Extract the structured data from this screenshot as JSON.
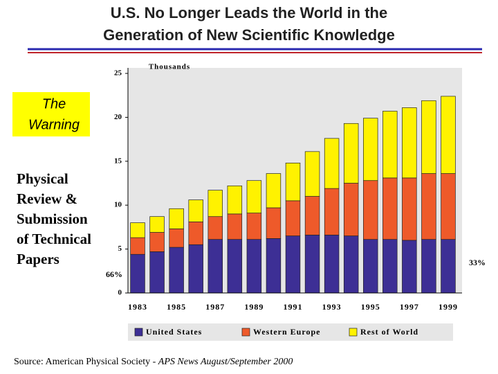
{
  "slide": {
    "title": [
      "U.S. No Longer Leads the World in the",
      "Generation of New Scientific Knowledge"
    ],
    "warning": [
      "The",
      "Warning"
    ],
    "side_text": [
      "Physical",
      "Review &",
      "Submission",
      "of Technical",
      "Papers"
    ],
    "left_note": "66%",
    "right_note": "33%",
    "source": {
      "prefix": "Source:",
      "text": "American Physical Society - ",
      "italic": "APS News August/September 2000"
    }
  },
  "chart_data": {
    "type": "stacked_bar",
    "y_unit": "Thousands",
    "categories": [
      "1983",
      null,
      "1985",
      null,
      "1987",
      null,
      "1989",
      null,
      "1991",
      null,
      "1993",
      null,
      "1995",
      null,
      "1997",
      null,
      "1999"
    ],
    "series": [
      {
        "name": "United States",
        "color": "#3d2f95",
        "values": [
          4.4,
          4.7,
          5.2,
          5.5,
          6.1,
          6.1,
          6.1,
          6.2,
          6.5,
          6.6,
          6.6,
          6.5,
          6.1,
          6.1,
          6.0,
          6.1,
          6.1
        ]
      },
      {
        "name": "Western Europe",
        "color": "#ee5a2a",
        "values": [
          1.9,
          2.2,
          2.1,
          2.6,
          2.6,
          2.9,
          3.0,
          3.5,
          4.0,
          4.4,
          5.3,
          6.0,
          6.7,
          7.0,
          7.1,
          7.5,
          7.5
        ]
      },
      {
        "name": "Rest of World",
        "color": "#fff200",
        "values": [
          1.7,
          1.8,
          2.3,
          2.5,
          3.0,
          3.2,
          3.7,
          3.9,
          4.3,
          5.1,
          5.7,
          6.8,
          7.1,
          7.6,
          8.0,
          8.3,
          8.8
        ]
      }
    ],
    "ylim": [
      0,
      25
    ],
    "yticks": [
      0,
      5,
      10,
      15,
      20,
      25
    ]
  }
}
